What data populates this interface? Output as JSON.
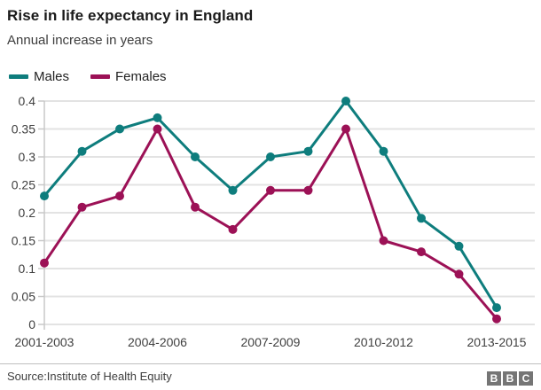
{
  "header": {
    "title": "Rise in life expectancy in England",
    "subtitle": "Annual increase in years"
  },
  "legend": [
    {
      "label": "Males",
      "color": "#0e7d7d"
    },
    {
      "label": "Females",
      "color": "#9c1156"
    }
  ],
  "chart_data": {
    "type": "line",
    "title": "Rise in life expectancy in England",
    "subtitle": "Annual increase in years",
    "x_points": 13,
    "x_tick_labels": [
      "2001-2003",
      "2004-2006",
      "2007-2009",
      "2010-2012",
      "2013-2015"
    ],
    "x_tick_indices": [
      0,
      3,
      6,
      9,
      12
    ],
    "series": [
      {
        "name": "Males",
        "color": "#0e7d7d",
        "values": [
          0.23,
          0.31,
          0.35,
          0.37,
          0.3,
          0.24,
          0.3,
          0.31,
          0.4,
          0.31,
          0.19,
          0.14,
          0.03
        ]
      },
      {
        "name": "Females",
        "color": "#9c1156",
        "values": [
          0.11,
          0.21,
          0.23,
          0.35,
          0.21,
          0.17,
          0.24,
          0.24,
          0.35,
          0.15,
          0.13,
          0.09,
          0.01
        ]
      }
    ],
    "ylim": [
      0,
      0.4
    ],
    "ytick_step": 0.05,
    "ytick_labels": [
      "0",
      "0.05",
      "0.1",
      "0.15",
      "0.2",
      "0.25",
      "0.3",
      "0.35",
      "0.4"
    ],
    "grid": true,
    "legend_position": "top-left"
  },
  "style_colors": {
    "grid": "#e3e3e3",
    "axis": "#c8c8c8",
    "tick_text": "#404040",
    "title_text": "#1a1a1a"
  },
  "footer": {
    "source": "Source:Institute of Health Equity",
    "logo_letters": [
      "B",
      "B",
      "C"
    ]
  }
}
